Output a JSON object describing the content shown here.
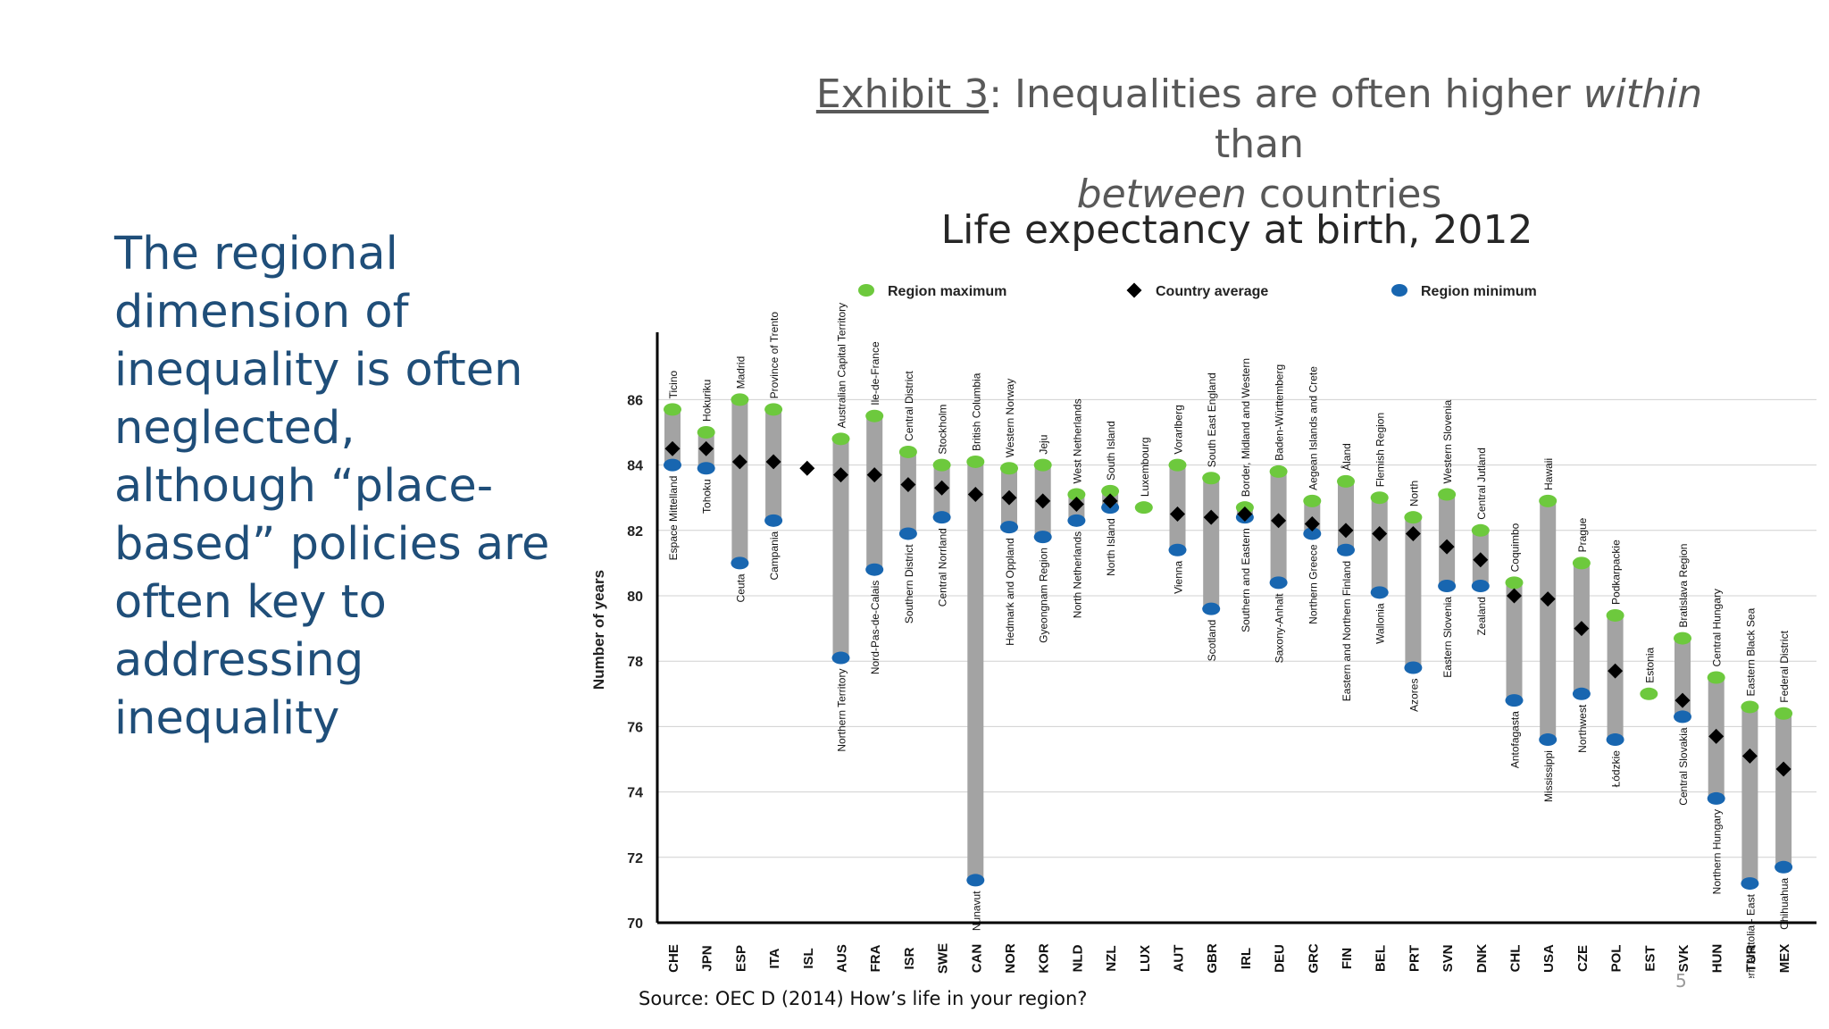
{
  "exhibit": {
    "lead": "Exhibit 3",
    "rest": ": Inequalities are often higher ",
    "italic1": "within",
    "mid": " than",
    "italic2": "between",
    "tail": " countries"
  },
  "left_text": "The regional dimension of inequality is often neglected, although “place-based” policies are often key to addressing inequality",
  "source": "Source: OEC D (2014) How’s life in your region?",
  "page_number": "5",
  "colors": {
    "max": "#6dc93d",
    "min": "#1866b0",
    "avg": "#000000",
    "bar": "#a3a3a3",
    "title": "#1f4e79"
  },
  "chart_data": {
    "type": "range",
    "title": "Life expectancy at birth, 2012",
    "ylabel": "Number of years",
    "ylim": [
      70,
      88
    ],
    "yticks": [
      70,
      72,
      74,
      76,
      78,
      80,
      82,
      84,
      86
    ],
    "legend": {
      "max": "Region maximum",
      "avg": "Country average",
      "min": "Region minimum"
    },
    "countries": [
      {
        "code": "CHE",
        "max": 85.7,
        "avg": 84.5,
        "min": 84.0,
        "max_region": "Ticino",
        "min_region": "Espace Mittelland"
      },
      {
        "code": "JPN",
        "max": 85.0,
        "avg": 84.5,
        "min": 83.9,
        "max_region": "Hokuriku",
        "min_region": "Tohoku"
      },
      {
        "code": "ESP",
        "max": 86.0,
        "avg": 84.1,
        "min": 81.0,
        "max_region": "Madrid",
        "min_region": "Ceuta"
      },
      {
        "code": "ITA",
        "max": 85.7,
        "avg": 84.1,
        "min": 82.3,
        "max_region": "Province of Trento",
        "min_region": "Campania"
      },
      {
        "code": "ISL",
        "max": null,
        "avg": 83.9,
        "min": null,
        "max_region": "",
        "min_region": ""
      },
      {
        "code": "AUS",
        "max": 84.8,
        "avg": 83.7,
        "min": 78.1,
        "max_region": "Australian Capital Territory",
        "min_region": "Northern Territory"
      },
      {
        "code": "FRA",
        "max": 85.5,
        "avg": 83.7,
        "min": 80.8,
        "max_region": "Ile-de-France",
        "min_region": "Nord-Pas-de-Calais"
      },
      {
        "code": "ISR",
        "max": 84.4,
        "avg": 83.4,
        "min": 81.9,
        "max_region": "Central District",
        "min_region": "Southern District"
      },
      {
        "code": "SWE",
        "max": 84.0,
        "avg": 83.3,
        "min": 82.4,
        "max_region": "Stockholm",
        "min_region": "Central Norrland"
      },
      {
        "code": "CAN",
        "max": 84.1,
        "avg": 83.1,
        "min": 71.3,
        "max_region": "British Columbia",
        "min_region": "Nunavut"
      },
      {
        "code": "NOR",
        "max": 83.9,
        "avg": 83.0,
        "min": 82.1,
        "max_region": "Western Norway",
        "min_region": "Hedmark and Oppland"
      },
      {
        "code": "KOR",
        "max": 84.0,
        "avg": 82.9,
        "min": 81.8,
        "max_region": "Jeju",
        "min_region": "Gyeongnam Region"
      },
      {
        "code": "NLD",
        "max": 83.1,
        "avg": 82.8,
        "min": 82.3,
        "max_region": "West Netherlands",
        "min_region": "North Netherlands"
      },
      {
        "code": "NZL",
        "max": 83.2,
        "avg": 82.9,
        "min": 82.7,
        "max_region": "South Island",
        "min_region": "North Island"
      },
      {
        "code": "LUX",
        "max": 82.7,
        "avg": null,
        "min": null,
        "max_region": "Luxembourg",
        "min_region": ""
      },
      {
        "code": "AUT",
        "max": 84.0,
        "avg": 82.5,
        "min": 81.4,
        "max_region": "Vorarlberg",
        "min_region": "Vienna"
      },
      {
        "code": "GBR",
        "max": 83.6,
        "avg": 82.4,
        "min": 79.6,
        "max_region": "South East England",
        "min_region": "Scotland"
      },
      {
        "code": "IRL",
        "max": 82.7,
        "avg": 82.5,
        "min": 82.4,
        "max_region": "Border, Midland and Western",
        "min_region": "Southern and Eastern"
      },
      {
        "code": "DEU",
        "max": 83.8,
        "avg": 82.3,
        "min": 80.4,
        "max_region": "Baden-Württemberg",
        "min_region": "Saxony-Anhalt"
      },
      {
        "code": "GRC",
        "max": 82.9,
        "avg": 82.2,
        "min": 81.9,
        "max_region": "Aegean Islands and Crete",
        "min_region": "Northern Greece"
      },
      {
        "code": "FIN",
        "max": 83.5,
        "avg": 82.0,
        "min": 81.4,
        "max_region": "Åland",
        "min_region": "Eastern and Northern Finland"
      },
      {
        "code": "BEL",
        "max": 83.0,
        "avg": 81.9,
        "min": 80.1,
        "max_region": "Flemish Region",
        "min_region": "Wallonia"
      },
      {
        "code": "PRT",
        "max": 82.4,
        "avg": 81.9,
        "min": 77.8,
        "max_region": "North",
        "min_region": "Azores"
      },
      {
        "code": "SVN",
        "max": 83.1,
        "avg": 81.5,
        "min": 80.3,
        "max_region": "Western Slovenia",
        "min_region": "Eastern Slovenia"
      },
      {
        "code": "DNK",
        "max": 82.0,
        "avg": 81.1,
        "min": 80.3,
        "max_region": "Central Jutland",
        "min_region": "Zealand"
      },
      {
        "code": "CHL",
        "max": 80.4,
        "avg": 80.0,
        "min": 76.8,
        "max_region": "Coquimbo",
        "min_region": "Antofagasta"
      },
      {
        "code": "USA",
        "max": 82.9,
        "avg": 79.9,
        "min": 75.6,
        "max_region": "Hawaii",
        "min_region": "Mississippi"
      },
      {
        "code": "CZE",
        "max": 81.0,
        "avg": 79.0,
        "min": 77.0,
        "max_region": "Prague",
        "min_region": "Northwest"
      },
      {
        "code": "POL",
        "max": 79.4,
        "avg": 77.7,
        "min": 75.6,
        "max_region": "Podkarpackie",
        "min_region": "Łódzkie"
      },
      {
        "code": "EST",
        "max": 77.0,
        "avg": null,
        "min": null,
        "max_region": "Estonia",
        "min_region": ""
      },
      {
        "code": "SVK",
        "max": 78.7,
        "avg": 76.8,
        "min": 76.3,
        "max_region": "Bratislava Region",
        "min_region": "Central Slovakia"
      },
      {
        "code": "HUN",
        "max": 77.5,
        "avg": 75.7,
        "min": 73.8,
        "max_region": "Central Hungary",
        "min_region": "Northern Hungary"
      },
      {
        "code": "TUR",
        "max": 76.6,
        "avg": 75.1,
        "min": 71.2,
        "max_region": "Eastern Black Sea",
        "min_region": "Northeastern Anatolia - East"
      },
      {
        "code": "MEX",
        "max": 76.4,
        "avg": 74.7,
        "min": 71.7,
        "max_region": "Federal District",
        "min_region": "Chihuahua"
      }
    ]
  }
}
